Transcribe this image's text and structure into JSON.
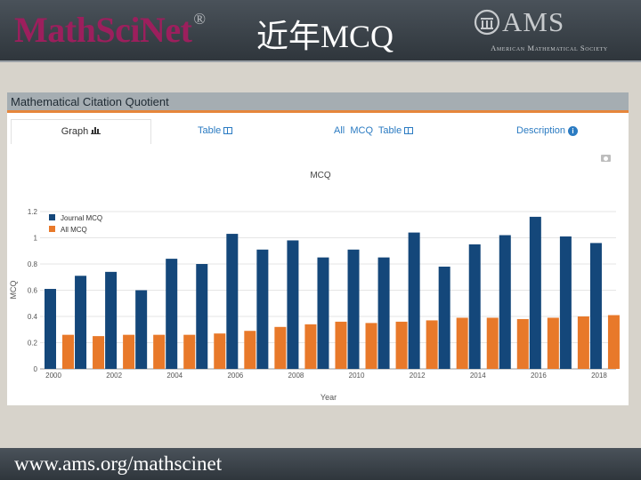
{
  "header": {
    "logo": "MathSciNet",
    "logo_mark": "®",
    "title": "近年MCQ",
    "ams_letters": "AMS",
    "ams_name": "American Mathematical Society"
  },
  "panel": {
    "title": "Mathematical Citation Quotient",
    "tabs": [
      {
        "label": "Graph",
        "icon": "bar-chart-icon",
        "active": true
      },
      {
        "label": "Table",
        "icon": "table-icon"
      },
      {
        "label": "All  MCQ  Table",
        "icon": "table-icon"
      },
      {
        "label": "Description",
        "icon": "info-icon"
      }
    ]
  },
  "footer": {
    "url": "www.ams.org/mathscinet"
  },
  "colors": {
    "journal": "#14477a",
    "all": "#e8792a",
    "accent": "#e6863b",
    "link": "#2b7bc2"
  },
  "chart_data": {
    "type": "bar",
    "title": "MCQ",
    "xlabel": "Year",
    "ylabel": "MCQ",
    "categories": [
      "2000",
      "2001",
      "2002",
      "2003",
      "2004",
      "2005",
      "2006",
      "2007",
      "2008",
      "2009",
      "2010",
      "2011",
      "2012",
      "2013",
      "2014",
      "2015",
      "2016",
      "2017",
      "2018"
    ],
    "x_tick_labels": [
      "2000",
      "2002",
      "2004",
      "2006",
      "2008",
      "2010",
      "2012",
      "2014",
      "2016",
      "2018"
    ],
    "y_ticks": [
      "0",
      "0.2",
      "0.4",
      "0.6",
      "0.8",
      "1",
      "1.2"
    ],
    "ylim": [
      0,
      1.2
    ],
    "legend_position": "top-left",
    "grid": true,
    "series": [
      {
        "name": "Journal MCQ",
        "values": [
          0.61,
          0.71,
          0.74,
          0.6,
          0.84,
          0.8,
          1.03,
          0.91,
          0.98,
          0.85,
          0.91,
          0.85,
          1.04,
          0.78,
          0.95,
          1.02,
          1.16,
          1.01,
          0.96
        ]
      },
      {
        "name": "All MCQ",
        "values": [
          0.26,
          0.25,
          0.26,
          0.26,
          0.26,
          0.27,
          0.29,
          0.32,
          0.34,
          0.36,
          0.35,
          0.36,
          0.37,
          0.39,
          0.39,
          0.38,
          0.39,
          0.4,
          0.41
        ]
      }
    ]
  }
}
